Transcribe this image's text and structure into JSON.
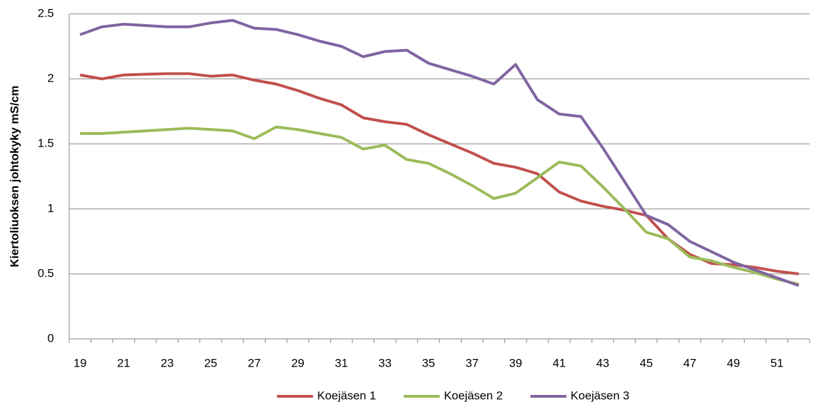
{
  "chart_data": {
    "type": "line",
    "y_label": "Kiertoliuoksen johtokyky mS/cm",
    "categories": [
      19,
      null,
      21,
      null,
      23,
      null,
      25,
      null,
      27,
      null,
      29,
      null,
      31,
      null,
      33,
      null,
      35,
      null,
      37,
      null,
      39,
      null,
      41,
      null,
      43,
      null,
      45,
      null,
      47,
      null,
      49,
      null,
      51,
      null
    ],
    "series": [
      {
        "name": "Koejäsen 1",
        "color": "#c0504d",
        "values": [
          2.03,
          2.0,
          2.03,
          2.035,
          2.04,
          2.04,
          2.02,
          2.03,
          1.99,
          1.96,
          1.91,
          1.85,
          1.8,
          1.7,
          1.67,
          1.65,
          1.57,
          1.5,
          1.43,
          1.35,
          1.32,
          1.27,
          1.13,
          1.06,
          1.02,
          0.99,
          0.95,
          0.77,
          0.65,
          0.58,
          0.57,
          0.55,
          0.52,
          0.5
        ]
      },
      {
        "name": "Koejäsen 2",
        "color": "#9bbb59",
        "values": [
          1.58,
          1.58,
          1.59,
          1.6,
          1.61,
          1.62,
          1.61,
          1.6,
          1.54,
          1.63,
          1.61,
          1.58,
          1.55,
          1.46,
          1.49,
          1.38,
          1.35,
          1.27,
          1.18,
          1.08,
          1.12,
          1.24,
          1.36,
          1.33,
          1.17,
          1.0,
          0.82,
          0.77,
          0.63,
          0.6,
          0.55,
          0.51,
          0.46,
          0.42
        ]
      },
      {
        "name": "Koejäsen 3",
        "color": "#8064a2",
        "values": [
          2.34,
          2.4,
          2.42,
          2.41,
          2.4,
          2.4,
          2.43,
          2.45,
          2.39,
          2.38,
          2.34,
          2.29,
          2.25,
          2.17,
          2.21,
          2.22,
          2.12,
          2.07,
          2.02,
          1.96,
          2.11,
          1.84,
          1.73,
          1.71,
          1.47,
          1.21,
          0.95,
          0.88,
          0.75,
          0.67,
          0.59,
          0.53,
          0.47,
          0.41
        ]
      }
    ],
    "ylim": [
      0,
      2.5
    ],
    "yticks": [
      0,
      0.5,
      1,
      1.5,
      2,
      2.5
    ],
    "grid": true,
    "legend": "bottom"
  }
}
